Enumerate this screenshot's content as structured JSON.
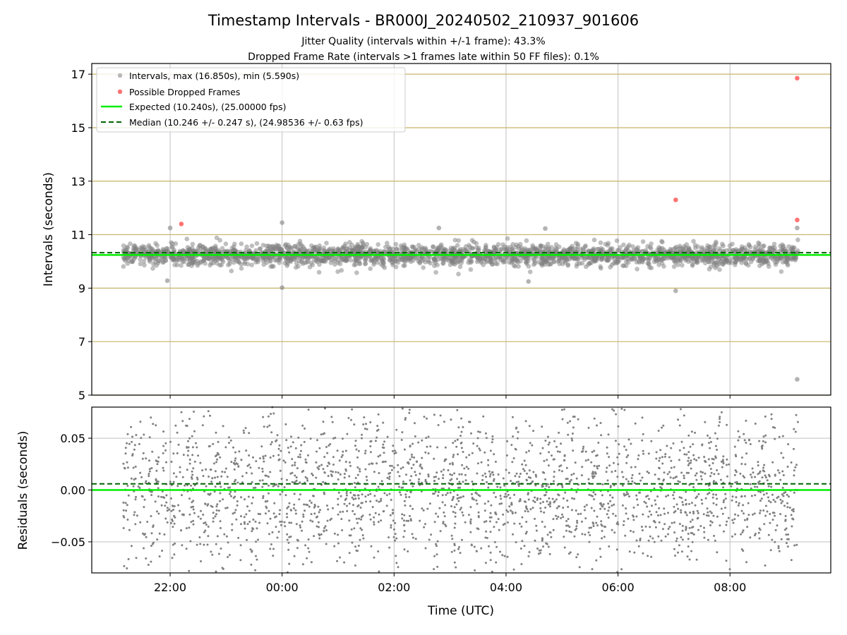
{
  "chart_data": {
    "type": "scatter",
    "title": "Timestamp Intervals - BR000J_20240502_210937_901606",
    "subtitle_lines": [
      "Jitter Quality (intervals within +/-1 frame): 43.3%",
      "Dropped Frame Rate (intervals >1 frames late within 50 FF files): 0.1%"
    ],
    "xlabel": "Time (UTC)",
    "x_ticks": [
      "22:00",
      "00:00",
      "02:00",
      "04:00",
      "06:00",
      "08:00"
    ],
    "x_tick_hours": [
      22,
      24,
      26,
      28,
      30,
      32
    ],
    "x_range_hours": [
      20.6,
      33.8
    ],
    "data_range_hours": [
      21.16,
      33.22
    ],
    "colors": {
      "intervals": "#808080",
      "dropped": "#ff0000",
      "expected": "#00ee00",
      "median": "#006400",
      "hgrid_top": "#c8b468",
      "grid": "#c0c0c0"
    },
    "top_panel": {
      "ylabel": "Intervals (seconds)",
      "ylim": [
        5,
        17.4
      ],
      "y_ticks": [
        "5",
        "7",
        "9",
        "11",
        "13",
        "15",
        "17"
      ],
      "y_tick_values": [
        5,
        7,
        9,
        11,
        13,
        15,
        17
      ],
      "expected": 10.24,
      "median": 10.246,
      "intervals_stats": {
        "max": 16.85,
        "min": 5.59,
        "mean": 10.24,
        "spread": 0.2
      },
      "intervals_outliers": [
        {
          "x": 33.2,
          "y": 5.59
        },
        {
          "x": 31.03,
          "y": 8.9
        },
        {
          "x": 24.0,
          "y": 9.02
        },
        {
          "x": 24.0,
          "y": 11.45
        },
        {
          "x": 28.7,
          "y": 11.23
        },
        {
          "x": 26.8,
          "y": 11.25
        },
        {
          "x": 33.2,
          "y": 11.25
        },
        {
          "x": 22.0,
          "y": 11.25
        },
        {
          "x": 28.4,
          "y": 9.25
        },
        {
          "x": 21.95,
          "y": 9.28
        }
      ],
      "dropped_frames": [
        {
          "x": 22.2,
          "y": 11.4
        },
        {
          "x": 31.03,
          "y": 12.3
        },
        {
          "x": 33.2,
          "y": 11.55
        },
        {
          "x": 33.2,
          "y": 16.85
        }
      ]
    },
    "bottom_panel": {
      "ylabel": "Residuals (seconds)",
      "ylim": [
        -0.08,
        0.08
      ],
      "y_ticks": [
        "−0.05",
        "0.00",
        "0.05"
      ],
      "y_tick_values": [
        -0.05,
        0.0,
        0.05
      ],
      "expected": 0.0,
      "median": 0.006
    },
    "legend": {
      "placement": "top-left",
      "entries": [
        "Intervals, max (16.850s), min (5.590s)",
        "Possible Dropped Frames",
        "Expected (10.240s), (25.00000 fps)",
        "Median (10.246 +/- 0.247 s), (24.98536 +/- 0.63 fps)"
      ]
    }
  }
}
